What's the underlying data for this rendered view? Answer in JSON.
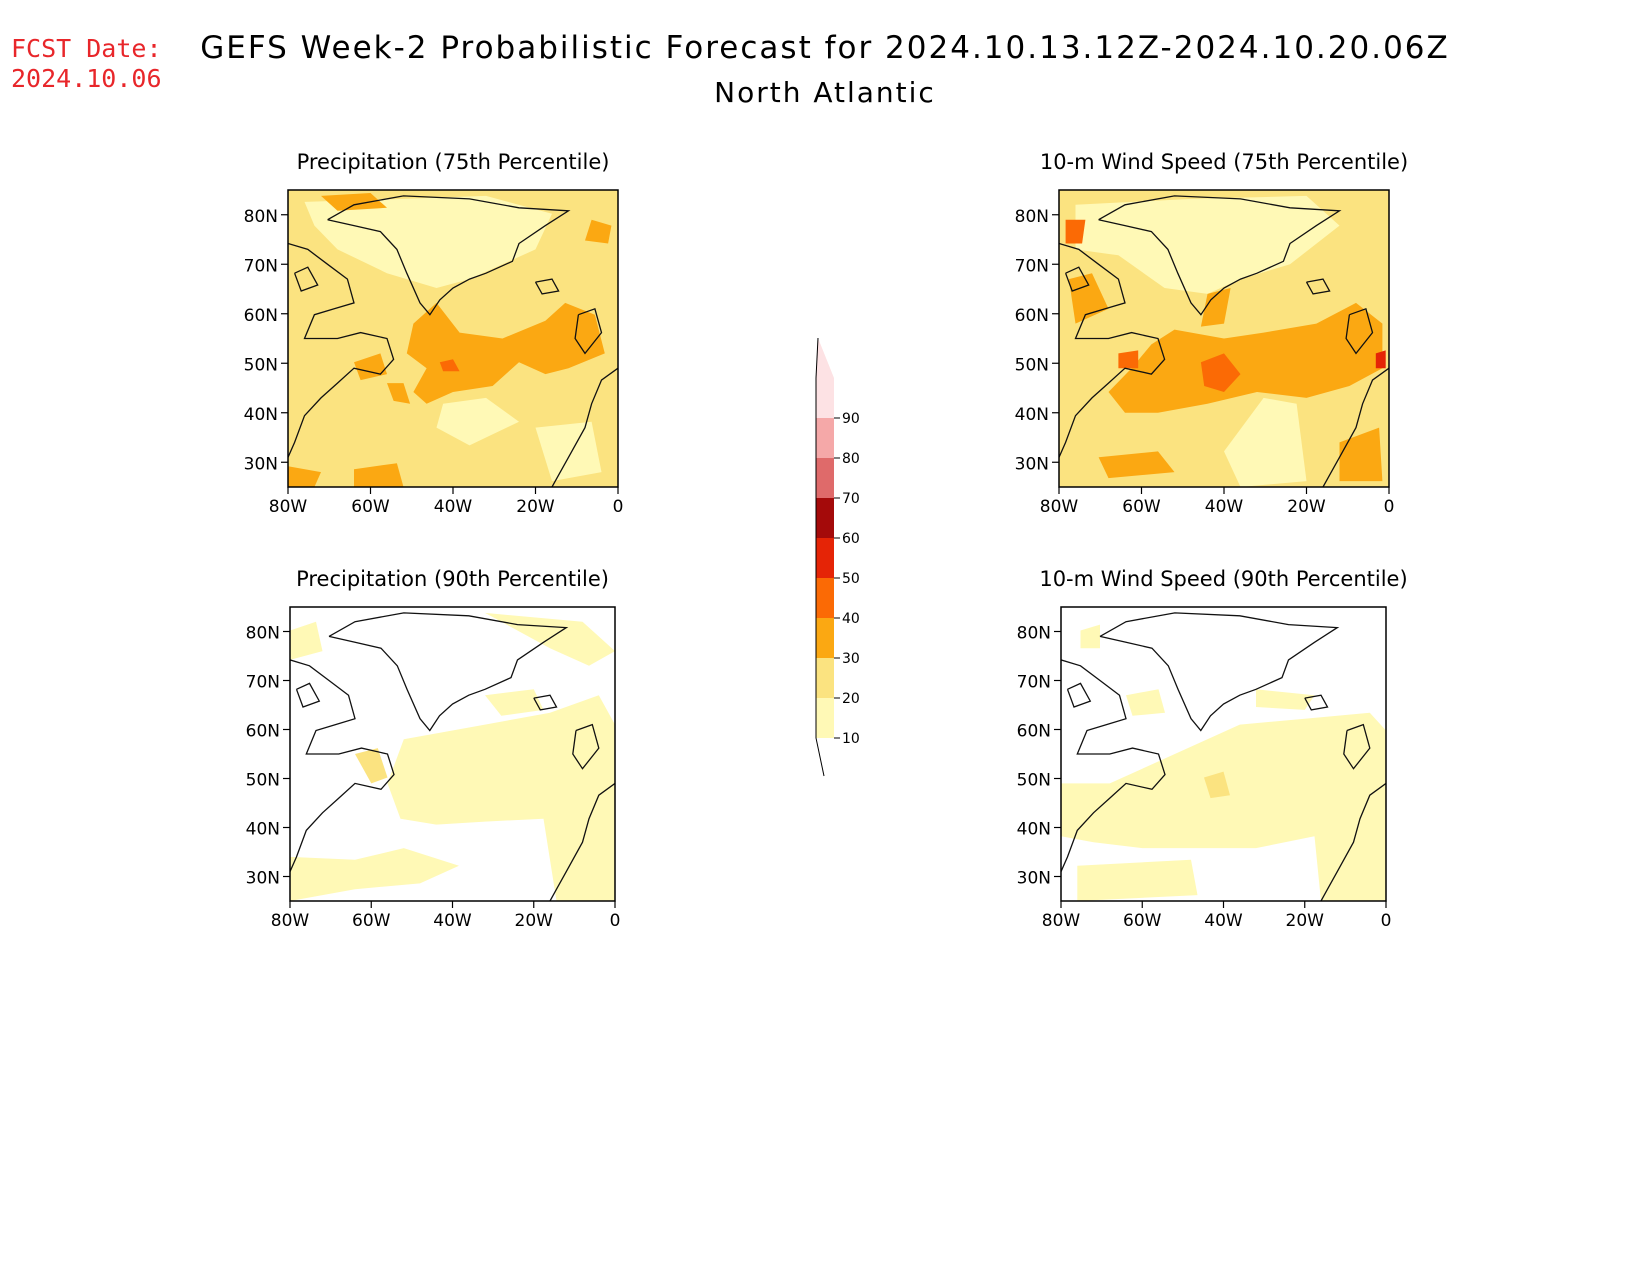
{
  "header": {
    "fcst_label": "FCST Date:",
    "fcst_date": "2024.10.06",
    "title": "GEFS Week-2 Probabilistic Forecast for 2024.10.13.12Z-2024.10.20.06Z",
    "region": "North Atlantic"
  },
  "colors": {
    "bins": [
      "#fff9b6",
      "#fbe380",
      "#fba812",
      "#fb6a05",
      "#e52406",
      "#a40a0a",
      "#df6a6a",
      "#f5a8a8",
      "#fde2e4"
    ],
    "coast": "#111111"
  },
  "colorbar": {
    "labels": [
      "10",
      "20",
      "30",
      "40",
      "50",
      "60",
      "70",
      "80",
      "90"
    ]
  },
  "axes": {
    "lat_ticks": [
      "80N",
      "70N",
      "60N",
      "50N",
      "40N",
      "30N"
    ],
    "lon_ticks": [
      "80W",
      "60W",
      "40W",
      "20W",
      "0"
    ]
  },
  "panels": [
    {
      "id": "precip-75",
      "title": "Precipitation (75th Percentile)"
    },
    {
      "id": "wind-75",
      "title": "10-m Wind Speed (75th Percentile)"
    },
    {
      "id": "precip-90",
      "title": "Precipitation (90th Percentile)"
    },
    {
      "id": "wind-90",
      "title": "10-m Wind Speed (90th Percentile)"
    }
  ]
}
